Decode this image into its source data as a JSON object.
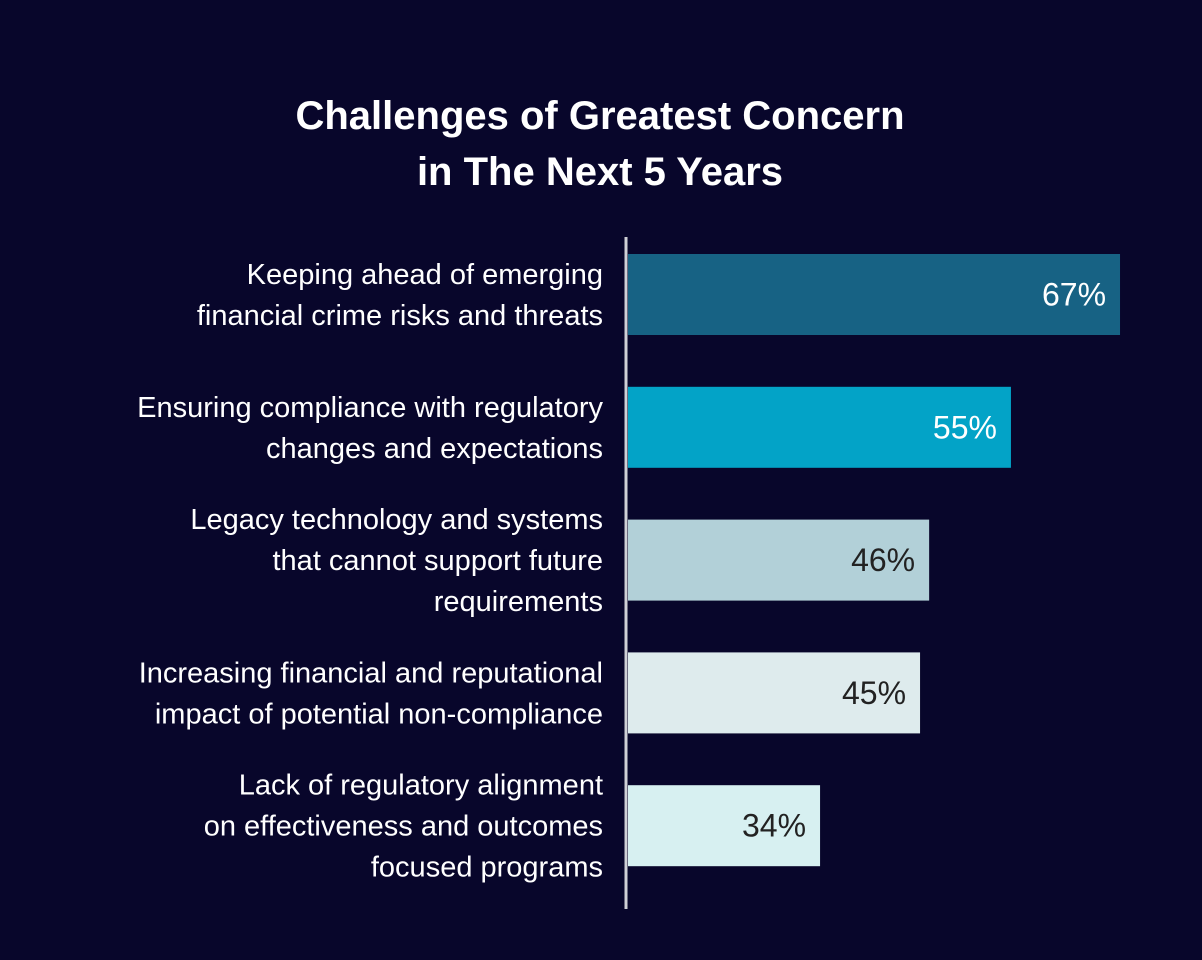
{
  "chart_data": {
    "type": "bar",
    "orientation": "horizontal",
    "title": "Challenges of Greatest Concern in The Next 5 Years",
    "title_lines": [
      "Challenges of Greatest Concern",
      "in The Next 5 Years"
    ],
    "xlabel": "",
    "ylabel": "",
    "unit": "%",
    "grid": false,
    "legend": "none",
    "categories": [
      [
        "Keeping ahead of emerging",
        "financial crime risks and threats"
      ],
      [
        "Ensuring compliance with regulatory",
        "changes and expectations"
      ],
      [
        "Legacy technology and systems",
        "that cannot support future",
        "requirements"
      ],
      [
        "Increasing financial and reputational",
        "impact of potential non-compliance"
      ],
      [
        "Lack of regulatory alignment",
        "on effectiveness and outcomes",
        "focused programs"
      ]
    ],
    "values": [
      67,
      55,
      46,
      45,
      34
    ],
    "value_labels": [
      "67%",
      "55%",
      "46%",
      "45%",
      "34%"
    ],
    "bar_colors": [
      "#176284",
      "#03a3c7",
      "#b2d0d8",
      "#deebed",
      "#d7f0f1"
    ],
    "label_colors": [
      "#ffffff",
      "#ffffff",
      "#222222",
      "#222222",
      "#222222"
    ]
  },
  "colors": {
    "background": "#08062b",
    "axis": "#cfd0d6",
    "text": "#ffffff"
  }
}
